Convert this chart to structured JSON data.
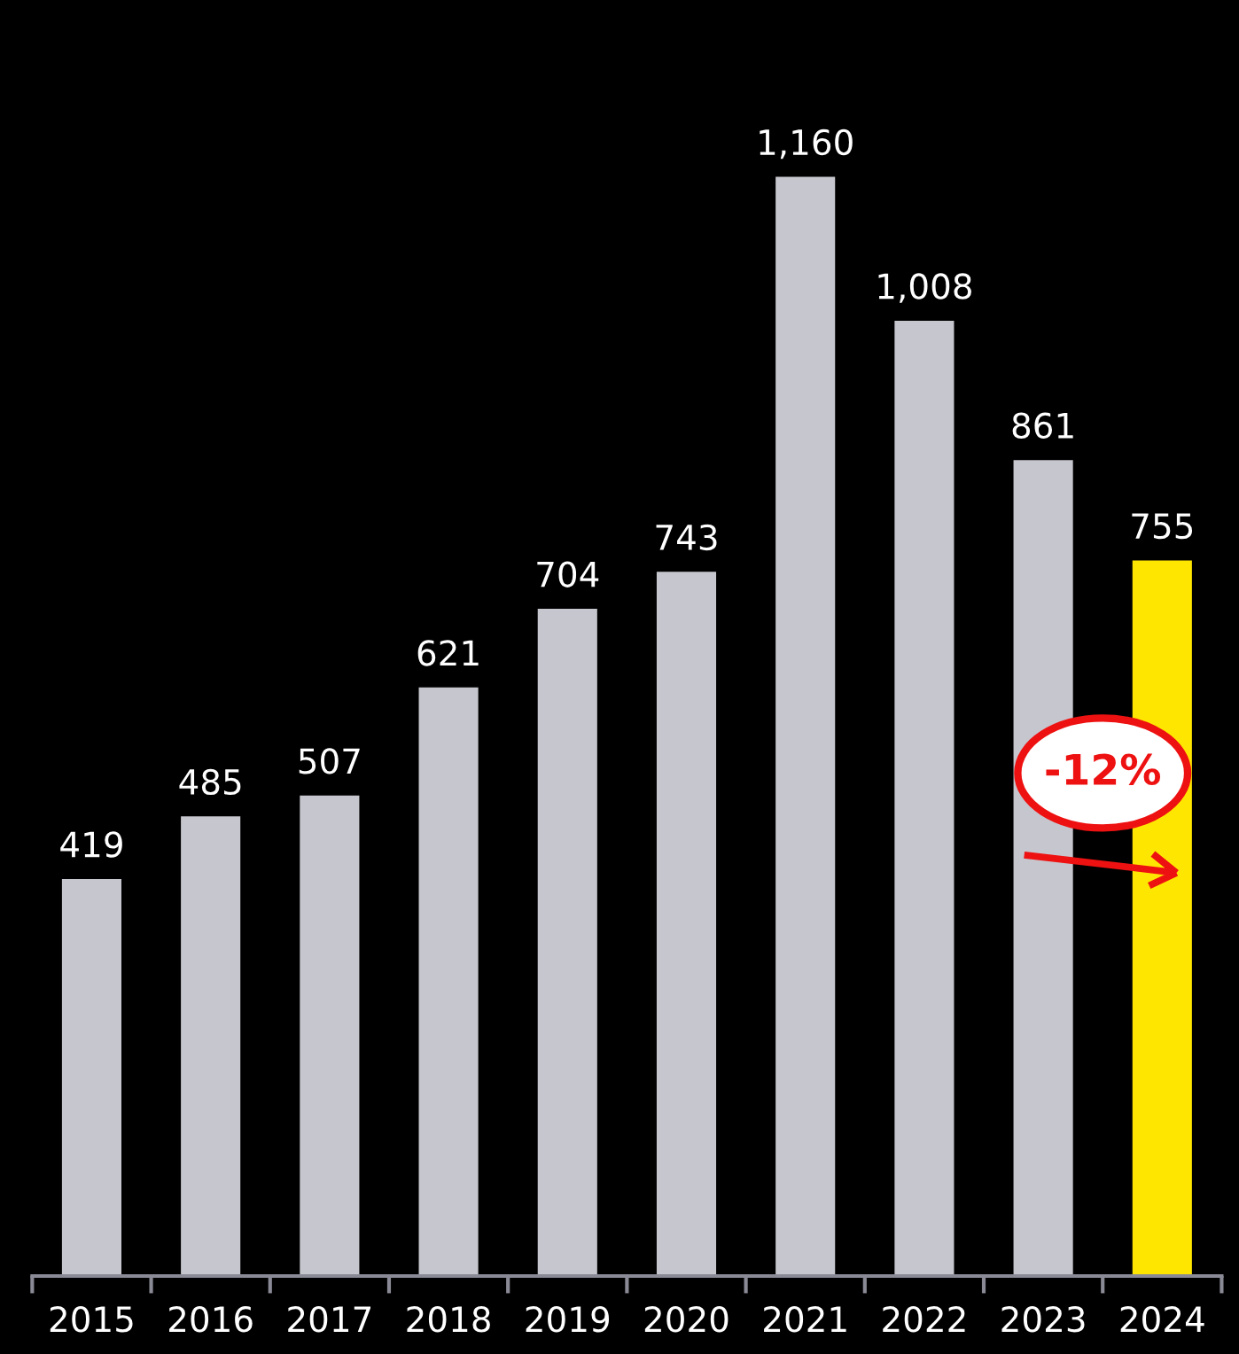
{
  "chart_data": {
    "type": "bar",
    "categories": [
      "2015",
      "2016",
      "2017",
      "2018",
      "2019",
      "2020",
      "2021",
      "2022",
      "2023",
      "2024"
    ],
    "values": [
      419,
      485,
      507,
      621,
      704,
      743,
      1160,
      1008,
      861,
      755
    ],
    "value_labels": [
      "419",
      "485",
      "507",
      "621",
      "704",
      "743",
      "1,160",
      "1,008",
      "861",
      "755"
    ],
    "colors": [
      "#c6c6ce",
      "#c6c6ce",
      "#c6c6ce",
      "#c6c6ce",
      "#c6c6ce",
      "#c6c6ce",
      "#c6c6ce",
      "#c6c6ce",
      "#c6c6ce",
      "#ffe600"
    ],
    "annotations": [
      "-12%"
    ]
  }
}
